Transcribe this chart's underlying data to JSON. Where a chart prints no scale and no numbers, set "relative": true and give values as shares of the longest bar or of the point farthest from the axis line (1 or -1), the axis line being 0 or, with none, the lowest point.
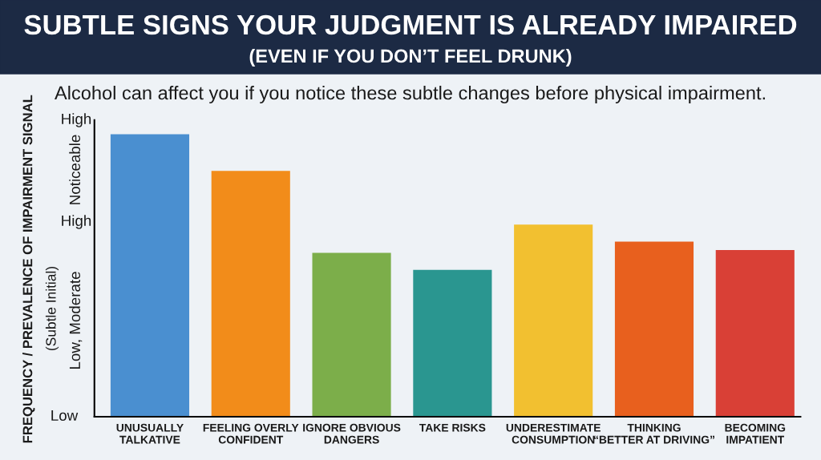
{
  "chart_data": {
    "type": "bar",
    "title": "SUBTLE SIGNS YOUR JUDGMENT IS ALREADY IMPAIRED",
    "subtitle": "(EVEN IF YOU DON’T FEEL DRUNK)",
    "ylabel": "FREQUENCY / PREVALENCE OF IMPAIRMENT SIGNAL",
    "annotations": [
      "Alcohol can affect you if you notice these subtle changes before physical impairment.",
      "High",
      "Noticeable",
      "High",
      "(Subtle Initial)",
      "Low, Moderate",
      "Low"
    ],
    "categories": [
      "UNUSUALLY\nTALKATIVE",
      "FEELING OVERLY\nCONFIDENT",
      "IGNORE OBVIOUS\nDANGERS",
      "TAKE RISKS",
      "UNDERESTIMATE\nCONSUMPTION",
      "THINKING\n“BETTER AT DRIVING”",
      "BECOMING\nIMPATIENT"
    ],
    "values": [
      1,
      0.87,
      0.58,
      0.52,
      0.68,
      0.62,
      0.59
    ],
    "colors": [
      "#4a8fd0",
      "#f28c1a",
      "#7cae4a",
      "#2a9690",
      "#f2c030",
      "#e8601e",
      "#d94036"
    ],
    "relative": true
  }
}
